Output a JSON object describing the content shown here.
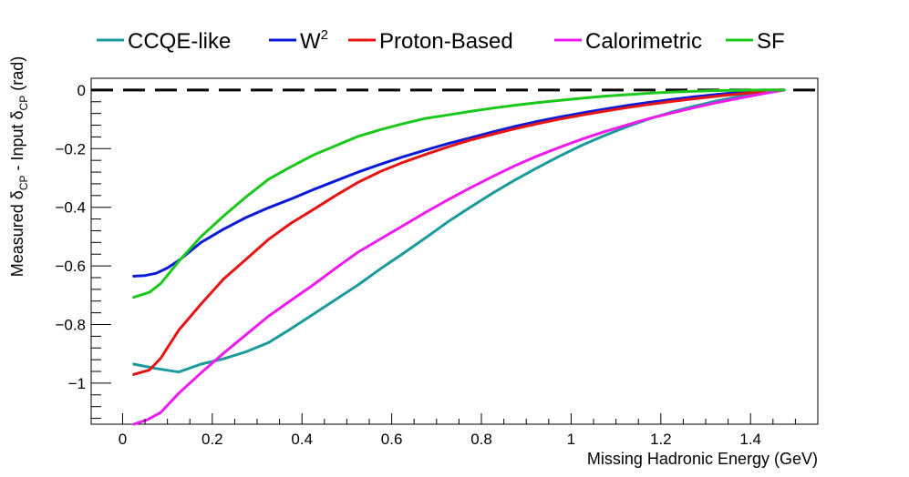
{
  "chart_data": {
    "type": "line",
    "title": "",
    "xlabel": "Missing Hadronic Energy (GeV)",
    "ylabel": {
      "prefix": "Measured δ",
      "sub1": "CP",
      "middle": " - Input δ",
      "sub2": "CP",
      "suffix": " (rad)"
    },
    "xlim": [
      -0.07,
      1.55
    ],
    "ylim": [
      -1.14,
      0.04
    ],
    "xticks": [
      {
        "value": 0,
        "label": "0"
      },
      {
        "value": 0.2,
        "label": "0.2"
      },
      {
        "value": 0.4,
        "label": "0.4"
      },
      {
        "value": 0.6,
        "label": "0.6"
      },
      {
        "value": 0.8,
        "label": "0.8"
      },
      {
        "value": 1.0,
        "label": "1"
      },
      {
        "value": 1.2,
        "label": "1.2"
      },
      {
        "value": 1.4,
        "label": "1.4"
      }
    ],
    "yticks": [
      {
        "value": 0,
        "label": "0"
      },
      {
        "value": -0.2,
        "label": "−0.2"
      },
      {
        "value": -0.4,
        "label": "−0.4"
      },
      {
        "value": -0.6,
        "label": "−0.6"
      },
      {
        "value": -0.8,
        "label": "−0.8"
      },
      {
        "value": -1.0,
        "label": "−1"
      }
    ],
    "reference_line": {
      "y": 0,
      "style": "dashed",
      "color": "#000000"
    },
    "legend_position": "top",
    "series": [
      {
        "name": "CCQE-like",
        "color": "#1a9a9a",
        "x": [
          0.025,
          0.075,
          0.125,
          0.175,
          0.225,
          0.275,
          0.325,
          0.375,
          0.425,
          0.475,
          0.525,
          0.575,
          0.625,
          0.675,
          0.725,
          0.775,
          0.825,
          0.875,
          0.925,
          0.975,
          1.025,
          1.075,
          1.125,
          1.175,
          1.225,
          1.275,
          1.325,
          1.375,
          1.425,
          1.475
        ],
        "values": [
          -0.935,
          -0.95,
          -0.962,
          -0.935,
          -0.917,
          -0.893,
          -0.862,
          -0.815,
          -0.765,
          -0.715,
          -0.665,
          -0.61,
          -0.558,
          -0.505,
          -0.45,
          -0.4,
          -0.352,
          -0.307,
          -0.265,
          -0.225,
          -0.188,
          -0.155,
          -0.125,
          -0.098,
          -0.075,
          -0.055,
          -0.037,
          -0.022,
          -0.01,
          0.0
        ]
      },
      {
        "name": "W²",
        "label_base": "W",
        "label_sup": "2",
        "color": "#0a1ad8",
        "x": [
          0.025,
          0.05,
          0.075,
          0.1,
          0.125,
          0.175,
          0.225,
          0.275,
          0.325,
          0.375,
          0.425,
          0.475,
          0.525,
          0.575,
          0.625,
          0.675,
          0.725,
          0.775,
          0.825,
          0.875,
          0.925,
          0.975,
          1.025,
          1.075,
          1.125,
          1.175,
          1.225,
          1.275,
          1.325,
          1.375,
          1.425,
          1.475
        ],
        "values": [
          -0.635,
          -0.633,
          -0.625,
          -0.607,
          -0.582,
          -0.52,
          -0.475,
          -0.435,
          -0.402,
          -0.372,
          -0.34,
          -0.31,
          -0.28,
          -0.253,
          -0.228,
          -0.205,
          -0.183,
          -0.163,
          -0.143,
          -0.124,
          -0.107,
          -0.092,
          -0.078,
          -0.065,
          -0.053,
          -0.042,
          -0.032,
          -0.023,
          -0.015,
          -0.008,
          -0.003,
          0.0
        ]
      },
      {
        "name": "Proton-Based",
        "color": "#e81414",
        "x": [
          0.025,
          0.06,
          0.085,
          0.125,
          0.175,
          0.225,
          0.275,
          0.325,
          0.375,
          0.425,
          0.475,
          0.525,
          0.575,
          0.625,
          0.675,
          0.725,
          0.775,
          0.825,
          0.875,
          0.925,
          0.975,
          1.025,
          1.075,
          1.125,
          1.175,
          1.225,
          1.275,
          1.325,
          1.375,
          1.425,
          1.475
        ],
        "values": [
          -0.97,
          -0.955,
          -0.915,
          -0.82,
          -0.73,
          -0.645,
          -0.578,
          -0.51,
          -0.455,
          -0.408,
          -0.36,
          -0.315,
          -0.278,
          -0.247,
          -0.22,
          -0.194,
          -0.171,
          -0.151,
          -0.132,
          -0.115,
          -0.099,
          -0.085,
          -0.072,
          -0.06,
          -0.049,
          -0.039,
          -0.03,
          -0.021,
          -0.013,
          -0.006,
          0.0
        ]
      },
      {
        "name": "Calorimetric",
        "color": "#ee1aee",
        "x": [
          0.025,
          0.055,
          0.085,
          0.125,
          0.175,
          0.225,
          0.275,
          0.325,
          0.375,
          0.425,
          0.475,
          0.525,
          0.575,
          0.625,
          0.675,
          0.725,
          0.775,
          0.825,
          0.875,
          0.925,
          0.975,
          1.025,
          1.075,
          1.125,
          1.175,
          1.225,
          1.275,
          1.325,
          1.375,
          1.425,
          1.475
        ],
        "values": [
          -1.14,
          -1.125,
          -1.1,
          -1.035,
          -0.965,
          -0.898,
          -0.835,
          -0.772,
          -0.718,
          -0.665,
          -0.608,
          -0.553,
          -0.508,
          -0.463,
          -0.418,
          -0.375,
          -0.334,
          -0.295,
          -0.258,
          -0.225,
          -0.195,
          -0.167,
          -0.142,
          -0.119,
          -0.097,
          -0.078,
          -0.06,
          -0.043,
          -0.028,
          -0.013,
          0.0
        ]
      },
      {
        "name": "SF",
        "color": "#1ac81a",
        "x": [
          0.025,
          0.06,
          0.085,
          0.125,
          0.175,
          0.225,
          0.275,
          0.325,
          0.375,
          0.425,
          0.475,
          0.525,
          0.575,
          0.625,
          0.675,
          0.725,
          0.775,
          0.825,
          0.875,
          0.925,
          0.975,
          1.025,
          1.075,
          1.125,
          1.175,
          1.225,
          1.275,
          1.325,
          1.375,
          1.425,
          1.475
        ],
        "values": [
          -0.707,
          -0.69,
          -0.66,
          -0.585,
          -0.5,
          -0.43,
          -0.365,
          -0.305,
          -0.262,
          -0.222,
          -0.19,
          -0.158,
          -0.135,
          -0.115,
          -0.097,
          -0.085,
          -0.073,
          -0.062,
          -0.052,
          -0.043,
          -0.035,
          -0.028,
          -0.021,
          -0.016,
          -0.011,
          -0.007,
          -0.004,
          -0.002,
          -0.001,
          0.0,
          0.0
        ]
      }
    ]
  }
}
